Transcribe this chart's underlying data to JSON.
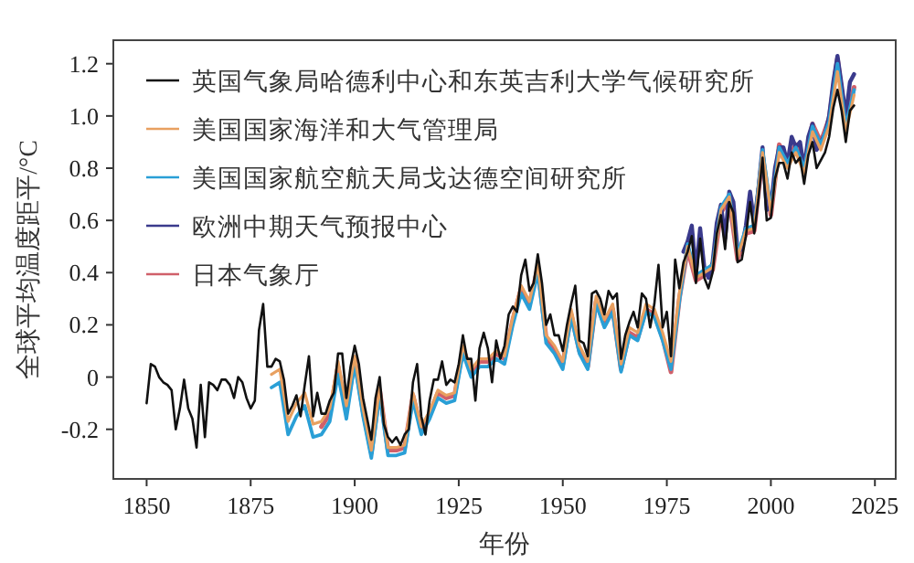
{
  "chart_data": {
    "type": "line",
    "xlabel": "年份",
    "ylabel": "全球平均温度距平/°C",
    "xlim": [
      1842,
      2030
    ],
    "ylim": [
      -0.39,
      1.29
    ],
    "xticks": [
      1850,
      1875,
      1900,
      1925,
      1950,
      1975,
      2000,
      2025
    ],
    "yticks": [
      -0.2,
      0,
      0.2,
      0.4,
      0.6,
      0.8,
      {
        "value": 1,
        "label": "1.0"
      },
      1.2
    ],
    "legend": "top left",
    "grid": false,
    "marker": "none",
    "line_style": "solid",
    "series": [
      {
        "name": "英国气象局哈德利中心和东英吉利大学气候研究所",
        "color": "#111111",
        "x": [
          1850,
          1851,
          1852,
          1853,
          1854,
          1855,
          1856,
          1857,
          1858,
          1859,
          1860,
          1861,
          1862,
          1863,
          1864,
          1865,
          1866,
          1867,
          1868,
          1869,
          1870,
          1871,
          1872,
          1873,
          1874,
          1875,
          1876,
          1877,
          1878,
          1879,
          1880,
          1881,
          1882,
          1883,
          1884,
          1885,
          1886,
          1887,
          1888,
          1889,
          1890,
          1891,
          1892,
          1893,
          1894,
          1895,
          1896,
          1897,
          1898,
          1899,
          1900,
          1901,
          1902,
          1903,
          1904,
          1905,
          1906,
          1907,
          1908,
          1909,
          1910,
          1911,
          1912,
          1913,
          1914,
          1915,
          1916,
          1917,
          1918,
          1919,
          1920,
          1921,
          1922,
          1923,
          1924,
          1925,
          1926,
          1927,
          1928,
          1929,
          1930,
          1931,
          1932,
          1933,
          1934,
          1935,
          1936,
          1937,
          1938,
          1939,
          1940,
          1941,
          1942,
          1943,
          1944,
          1945,
          1946,
          1947,
          1948,
          1949,
          1950,
          1951,
          1952,
          1953,
          1954,
          1955,
          1956,
          1957,
          1958,
          1959,
          1960,
          1961,
          1962,
          1963,
          1964,
          1965,
          1966,
          1967,
          1968,
          1969,
          1970,
          1971,
          1972,
          1973,
          1974,
          1975,
          1976,
          1977,
          1978,
          1979,
          1980,
          1981,
          1982,
          1983,
          1984,
          1985,
          1986,
          1987,
          1988,
          1989,
          1990,
          1991,
          1992,
          1993,
          1994,
          1995,
          1996,
          1997,
          1998,
          1999,
          2000,
          2001,
          2002,
          2003,
          2004,
          2005,
          2006,
          2007,
          2008,
          2009,
          2010,
          2011,
          2012,
          2013,
          2014,
          2015,
          2016,
          2017,
          2018,
          2019,
          2020
        ],
        "values": [
          -0.1,
          0.05,
          0.04,
          0.0,
          -0.02,
          -0.03,
          -0.05,
          -0.2,
          -0.12,
          -0.01,
          -0.12,
          -0.16,
          -0.27,
          -0.03,
          -0.23,
          -0.02,
          -0.03,
          -0.05,
          -0.01,
          -0.01,
          -0.03,
          -0.08,
          0.0,
          -0.02,
          -0.08,
          -0.12,
          -0.09,
          0.18,
          0.28,
          0.04,
          0.04,
          0.07,
          0.06,
          -0.01,
          -0.14,
          -0.11,
          -0.07,
          -0.15,
          -0.03,
          0.08,
          -0.15,
          -0.06,
          -0.14,
          -0.14,
          -0.09,
          -0.06,
          0.09,
          0.09,
          -0.08,
          0.04,
          0.12,
          0.05,
          -0.08,
          -0.16,
          -0.24,
          -0.08,
          0.0,
          -0.18,
          -0.23,
          -0.25,
          -0.23,
          -0.26,
          -0.22,
          -0.2,
          -0.02,
          0.05,
          -0.15,
          -0.22,
          -0.09,
          -0.01,
          -0.01,
          0.06,
          -0.03,
          -0.01,
          -0.02,
          0.05,
          0.16,
          0.07,
          0.07,
          -0.09,
          0.11,
          0.17,
          0.11,
          -0.02,
          0.14,
          0.07,
          0.12,
          0.24,
          0.27,
          0.25,
          0.39,
          0.45,
          0.33,
          0.36,
          0.47,
          0.36,
          0.2,
          0.24,
          0.16,
          0.16,
          0.1,
          0.2,
          0.28,
          0.35,
          0.14,
          0.13,
          0.08,
          0.32,
          0.33,
          0.3,
          0.24,
          0.33,
          0.3,
          0.32,
          0.07,
          0.16,
          0.21,
          0.25,
          0.19,
          0.32,
          0.3,
          0.19,
          0.28,
          0.43,
          0.19,
          0.25,
          0.08,
          0.45,
          0.34,
          0.44,
          0.48,
          0.54,
          0.36,
          0.53,
          0.38,
          0.34,
          0.4,
          0.55,
          0.62,
          0.49,
          0.67,
          0.63,
          0.44,
          0.45,
          0.54,
          0.67,
          0.55,
          0.68,
          0.84,
          0.6,
          0.61,
          0.76,
          0.82,
          0.82,
          0.76,
          0.86,
          0.82,
          0.84,
          0.74,
          0.85,
          0.9,
          0.8,
          0.83,
          0.86,
          0.92,
          1.03,
          1.1,
          1.02,
          0.9,
          1.02,
          1.04
        ]
      },
      {
        "name": "美国国家海洋和大气管理局",
        "color": "#e8a060",
        "x": [
          1880,
          1882,
          1884,
          1886,
          1888,
          1890,
          1892,
          1894,
          1896,
          1898,
          1900,
          1902,
          1904,
          1906,
          1908,
          1910,
          1912,
          1914,
          1916,
          1918,
          1920,
          1922,
          1924,
          1926,
          1928,
          1930,
          1932,
          1934,
          1936,
          1938,
          1940,
          1942,
          1944,
          1946,
          1948,
          1950,
          1952,
          1954,
          1956,
          1958,
          1960,
          1962,
          1964,
          1966,
          1968,
          1970,
          1972,
          1974,
          1976,
          1978,
          1980,
          1982,
          1984,
          1986,
          1988,
          1990,
          1992,
          1994,
          1996,
          1998,
          2000,
          2002,
          2004,
          2006,
          2008,
          2010,
          2012,
          2014,
          2016,
          2018,
          2020
        ],
        "values": [
          0.01,
          0.03,
          -0.17,
          -0.1,
          -0.06,
          -0.18,
          -0.17,
          -0.12,
          0.06,
          -0.11,
          0.08,
          -0.12,
          -0.28,
          -0.04,
          -0.27,
          -0.27,
          -0.26,
          -0.06,
          -0.19,
          -0.13,
          -0.05,
          -0.07,
          -0.06,
          0.12,
          0.03,
          0.07,
          0.07,
          0.1,
          0.08,
          0.23,
          0.35,
          0.29,
          0.43,
          0.16,
          0.12,
          0.06,
          0.26,
          0.12,
          0.06,
          0.31,
          0.22,
          0.28,
          0.05,
          0.19,
          0.17,
          0.28,
          0.26,
          0.17,
          0.06,
          0.32,
          0.5,
          0.38,
          0.4,
          0.42,
          0.64,
          0.69,
          0.46,
          0.56,
          0.57,
          0.86,
          0.63,
          0.86,
          0.8,
          0.86,
          0.78,
          0.94,
          0.87,
          0.96,
          1.17,
          0.94,
          1.08
        ]
      },
      {
        "name": "美国国家航空航天局戈达德空间研究所",
        "color": "#2a9fd6",
        "x": [
          1880,
          1882,
          1884,
          1886,
          1888,
          1890,
          1892,
          1894,
          1896,
          1898,
          1900,
          1902,
          1904,
          1906,
          1908,
          1910,
          1912,
          1914,
          1916,
          1918,
          1920,
          1922,
          1924,
          1926,
          1928,
          1930,
          1932,
          1934,
          1936,
          1938,
          1940,
          1942,
          1944,
          1946,
          1948,
          1950,
          1952,
          1954,
          1956,
          1958,
          1960,
          1962,
          1964,
          1966,
          1968,
          1970,
          1972,
          1974,
          1976,
          1978,
          1980,
          1982,
          1984,
          1986,
          1988,
          1990,
          1992,
          1994,
          1996,
          1998,
          2000,
          2002,
          2004,
          2006,
          2008,
          2010,
          2012,
          2014,
          2016,
          2018,
          2020
        ],
        "values": [
          -0.04,
          -0.02,
          -0.22,
          -0.15,
          -0.11,
          -0.23,
          -0.22,
          -0.17,
          0.01,
          -0.16,
          0.05,
          -0.15,
          -0.31,
          -0.07,
          -0.3,
          -0.3,
          -0.29,
          -0.09,
          -0.22,
          -0.16,
          -0.08,
          -0.1,
          -0.09,
          0.09,
          0.0,
          0.04,
          0.04,
          0.07,
          0.05,
          0.2,
          0.32,
          0.26,
          0.4,
          0.13,
          0.09,
          0.03,
          0.23,
          0.09,
          0.03,
          0.28,
          0.19,
          0.25,
          0.02,
          0.16,
          0.14,
          0.25,
          0.23,
          0.14,
          0.03,
          0.29,
          0.51,
          0.39,
          0.41,
          0.43,
          0.65,
          0.7,
          0.47,
          0.57,
          0.58,
          0.87,
          0.64,
          0.88,
          0.82,
          0.88,
          0.8,
          0.96,
          0.89,
          0.98,
          1.2,
          0.96,
          1.1
        ]
      },
      {
        "name": "欧洲中期天气预报中心",
        "color": "#3a3a8c",
        "x": [
          1979,
          1980,
          1981,
          1982,
          1983,
          1984,
          1985,
          1986,
          1987,
          1988,
          1989,
          1990,
          1991,
          1992,
          1993,
          1994,
          1995,
          1996,
          1997,
          1998,
          1999,
          2000,
          2001,
          2002,
          2003,
          2004,
          2005,
          2006,
          2007,
          2008,
          2009,
          2010,
          2011,
          2012,
          2013,
          2014,
          2015,
          2016,
          2017,
          2018,
          2019,
          2020
        ],
        "values": [
          0.48,
          0.52,
          0.58,
          0.4,
          0.57,
          0.42,
          0.38,
          0.44,
          0.59,
          0.66,
          0.53,
          0.71,
          0.67,
          0.48,
          0.49,
          0.58,
          0.71,
          0.59,
          0.72,
          0.88,
          0.64,
          0.65,
          0.8,
          0.88,
          0.88,
          0.82,
          0.92,
          0.88,
          0.9,
          0.8,
          0.92,
          0.97,
          0.87,
          0.9,
          0.93,
          1.0,
          1.13,
          1.23,
          1.12,
          1.0,
          1.13,
          1.16
        ]
      },
      {
        "name": "日本气象厅",
        "color": "#d0606a",
        "x": [
          1892,
          1894,
          1896,
          1898,
          1900,
          1902,
          1904,
          1906,
          1908,
          1910,
          1912,
          1914,
          1916,
          1918,
          1920,
          1922,
          1924,
          1926,
          1928,
          1930,
          1932,
          1934,
          1936,
          1938,
          1940,
          1942,
          1944,
          1946,
          1948,
          1950,
          1952,
          1954,
          1956,
          1958,
          1960,
          1962,
          1964,
          1966,
          1968,
          1970,
          1972,
          1974,
          1976,
          1978,
          1980,
          1982,
          1984,
          1986,
          1988,
          1990,
          1992,
          1994,
          1996,
          1998,
          2000,
          2002,
          2004,
          2006,
          2008,
          2010,
          2012,
          2014,
          2016,
          2018,
          2020
        ],
        "values": [
          -0.19,
          -0.14,
          0.04,
          -0.13,
          0.07,
          -0.13,
          -0.29,
          -0.05,
          -0.28,
          -0.28,
          -0.27,
          -0.07,
          -0.2,
          -0.14,
          -0.06,
          -0.08,
          -0.07,
          0.11,
          0.02,
          0.06,
          0.06,
          0.09,
          0.07,
          0.22,
          0.34,
          0.28,
          0.42,
          0.15,
          0.11,
          0.05,
          0.24,
          0.1,
          0.04,
          0.29,
          0.2,
          0.26,
          0.03,
          0.17,
          0.15,
          0.26,
          0.24,
          0.15,
          0.02,
          0.3,
          0.49,
          0.37,
          0.39,
          0.41,
          0.63,
          0.68,
          0.45,
          0.55,
          0.56,
          0.85,
          0.62,
          0.89,
          0.83,
          0.89,
          0.81,
          0.97,
          0.9,
          0.99,
          1.22,
          0.97,
          1.11
        ]
      }
    ]
  }
}
